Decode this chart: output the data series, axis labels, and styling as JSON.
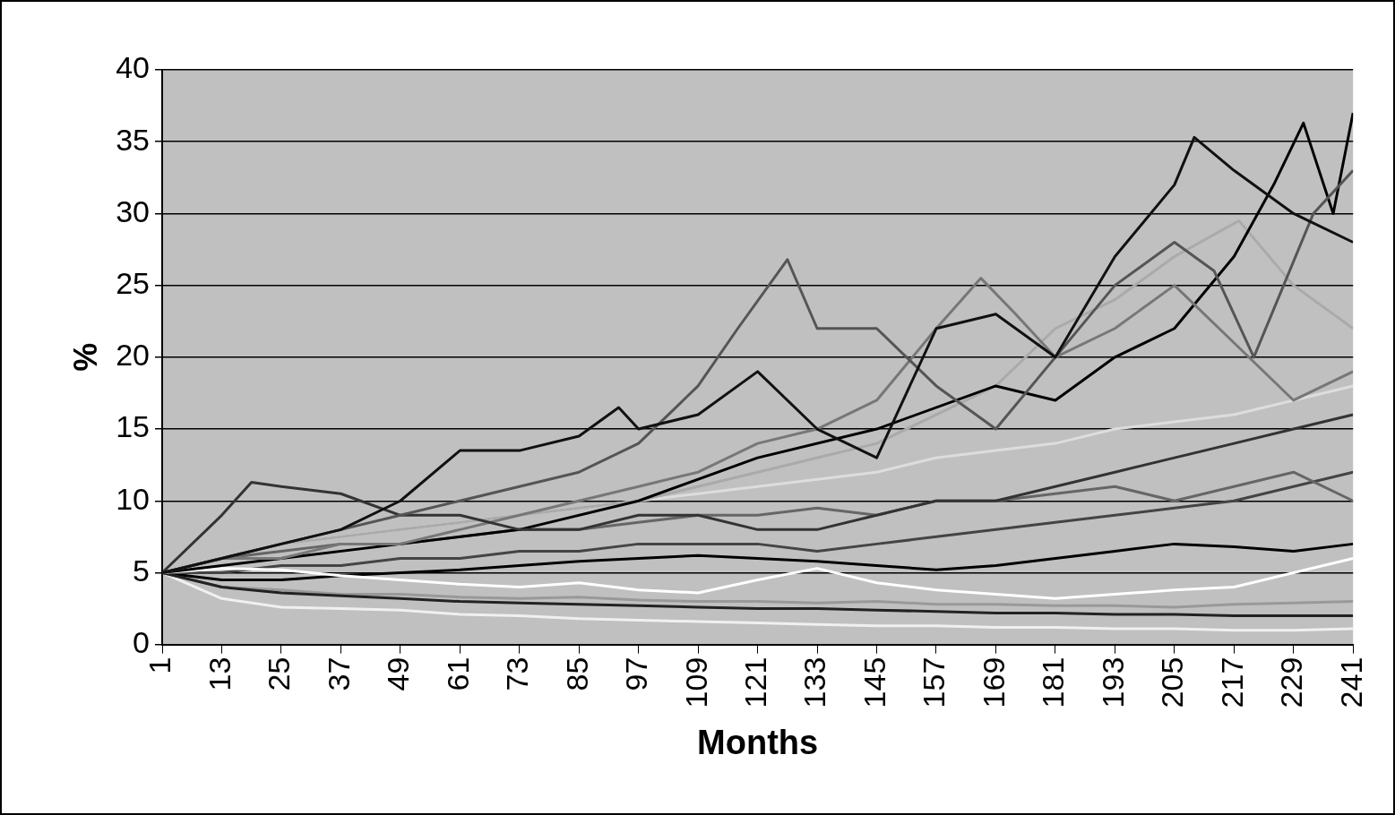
{
  "chart_data": {
    "type": "line",
    "xlabel": "Months",
    "ylabel": "%",
    "xlim": [
      1,
      241
    ],
    "xticks": [
      1,
      13,
      25,
      37,
      49,
      61,
      73,
      85,
      97,
      109,
      121,
      133,
      145,
      157,
      169,
      181,
      193,
      205,
      217,
      229,
      241
    ],
    "ylim": [
      0,
      40
    ],
    "yticks": [
      0,
      5,
      10,
      15,
      20,
      25,
      30,
      35,
      40
    ],
    "grid": "y",
    "legend": false,
    "series": [
      {
        "color": "#111111",
        "x": [
          1,
          13,
          25,
          37,
          49,
          61,
          73,
          85,
          93,
          97,
          109,
          121,
          133,
          145,
          157,
          169,
          181,
          193,
          205,
          209,
          217,
          229,
          241
        ],
        "values": [
          5,
          6,
          7,
          8,
          10,
          13.5,
          13.5,
          14.5,
          16.5,
          15,
          16,
          19,
          15,
          13,
          22,
          23,
          20,
          27,
          32,
          35.3,
          33,
          30,
          28
        ]
      },
      {
        "color": "#555555",
        "x": [
          1,
          13,
          25,
          37,
          49,
          61,
          73,
          85,
          97,
          109,
          117,
          127,
          133,
          145,
          157,
          169,
          181,
          193,
          205,
          213,
          221,
          233,
          241
        ],
        "values": [
          5,
          6,
          7,
          8,
          9,
          10,
          11,
          12,
          14,
          18,
          22,
          26.8,
          22,
          22,
          18,
          15,
          20,
          25,
          28,
          26,
          20,
          30,
          33
        ]
      },
      {
        "color": "#333333",
        "x": [
          1,
          13,
          19,
          25,
          37,
          49,
          61,
          73,
          85,
          97,
          109,
          121,
          133,
          145,
          157,
          169,
          181,
          193,
          205,
          217,
          229,
          241
        ],
        "values": [
          5,
          9,
          11.3,
          11,
          10.5,
          9,
          9,
          8,
          8,
          9,
          9,
          8,
          8,
          9,
          10,
          10,
          11,
          12,
          13,
          14,
          15,
          16
        ]
      },
      {
        "color": "#777777",
        "x": [
          1,
          13,
          25,
          37,
          49,
          61,
          73,
          85,
          97,
          109,
          121,
          133,
          145,
          157,
          166,
          173,
          181,
          193,
          205,
          217,
          229,
          241
        ],
        "values": [
          5,
          6,
          6,
          7,
          7,
          8,
          9,
          10,
          11,
          12,
          14,
          15,
          17,
          22,
          25.5,
          23,
          20,
          22,
          25,
          21,
          17,
          19
        ]
      },
      {
        "color": "#000000",
        "x": [
          1,
          25,
          49,
          73,
          97,
          121,
          145,
          169,
          181,
          193,
          205,
          217,
          225,
          231,
          237,
          241
        ],
        "values": [
          5,
          6,
          7,
          8,
          10,
          13,
          15,
          18,
          17,
          20,
          22,
          27,
          32,
          36.3,
          30,
          37
        ]
      },
      {
        "color": "#aaaaaa",
        "x": [
          1,
          25,
          49,
          73,
          97,
          121,
          145,
          169,
          181,
          193,
          205,
          218,
          229,
          241
        ],
        "values": [
          5,
          7,
          8,
          9,
          10,
          12,
          14,
          18,
          22,
          24,
          27,
          29.5,
          25,
          22
        ]
      },
      {
        "color": "#ffffff",
        "x": [
          1,
          13,
          25,
          37,
          49,
          61,
          73,
          85,
          97,
          109,
          121,
          133,
          145,
          157,
          169,
          181,
          193,
          205,
          217,
          229,
          241
        ],
        "values": [
          5,
          5.3,
          5.2,
          4.8,
          4.5,
          4.2,
          4,
          4.3,
          3.8,
          3.6,
          4.5,
          5.3,
          4.3,
          3.8,
          3.5,
          3.2,
          3.5,
          3.8,
          4,
          5,
          6
        ]
      },
      {
        "color": "#222222",
        "x": [
          1,
          13,
          25,
          37,
          49,
          61,
          73,
          85,
          97,
          109,
          121,
          133,
          145,
          157,
          169,
          181,
          193,
          205,
          217,
          229,
          241
        ],
        "values": [
          5,
          4,
          3.6,
          3.4,
          3.2,
          3,
          2.9,
          2.8,
          2.7,
          2.6,
          2.5,
          2.5,
          2.4,
          2.3,
          2.2,
          2.2,
          2.1,
          2.1,
          2,
          2,
          2
        ]
      },
      {
        "color": "#666666",
        "x": [
          1,
          13,
          25,
          37,
          49,
          61,
          73,
          85,
          97,
          109,
          121,
          133,
          145,
          157,
          169,
          181,
          193,
          205,
          217,
          229,
          241
        ],
        "values": [
          5,
          6,
          6.5,
          7,
          7,
          7.5,
          8,
          8,
          8.5,
          9,
          9,
          9.5,
          9,
          10,
          10,
          10.5,
          11,
          10,
          11,
          12,
          10
        ]
      },
      {
        "color": "#444444",
        "x": [
          1,
          13,
          25,
          37,
          49,
          61,
          73,
          85,
          97,
          109,
          121,
          133,
          145,
          157,
          169,
          181,
          193,
          205,
          217,
          229,
          241
        ],
        "values": [
          5,
          5,
          5.5,
          5.5,
          6,
          6,
          6.5,
          6.5,
          7,
          7,
          7,
          6.5,
          7,
          7.5,
          8,
          8.5,
          9,
          9.5,
          10,
          11,
          12
        ]
      },
      {
        "color": "#000000",
        "x": [
          1,
          13,
          25,
          37,
          49,
          61,
          73,
          85,
          97,
          109,
          121,
          133,
          145,
          157,
          169,
          181,
          193,
          205,
          217,
          229,
          241
        ],
        "values": [
          5,
          4.5,
          4.5,
          4.8,
          5,
          5.2,
          5.5,
          5.8,
          6,
          6.2,
          6,
          5.8,
          5.5,
          5.2,
          5.5,
          6,
          6.5,
          7,
          6.8,
          6.5,
          7
        ]
      },
      {
        "color": "#999999",
        "x": [
          1,
          13,
          25,
          37,
          49,
          61,
          73,
          85,
          97,
          109,
          121,
          133,
          145,
          157,
          169,
          181,
          193,
          205,
          217,
          229,
          241
        ],
        "values": [
          5,
          4,
          3.8,
          3.5,
          3.5,
          3.3,
          3.2,
          3.3,
          3.1,
          3,
          3,
          2.9,
          3,
          2.8,
          2.8,
          2.7,
          2.7,
          2.6,
          2.8,
          2.9,
          3
        ]
      },
      {
        "color": "#dddddd",
        "x": [
          1,
          13,
          25,
          37,
          49,
          61,
          73,
          85,
          97,
          109,
          121,
          133,
          145,
          157,
          169,
          181,
          193,
          205,
          217,
          229,
          241
        ],
        "values": [
          5,
          6,
          7,
          7.5,
          8,
          8.5,
          9,
          9.5,
          10,
          10.5,
          11,
          11.5,
          12,
          13,
          13.5,
          14,
          15,
          15.5,
          16,
          17,
          18
        ]
      },
      {
        "color": "#f0f0f0",
        "x": [
          1,
          13,
          25,
          37,
          49,
          61,
          73,
          85,
          97,
          109,
          121,
          133,
          145,
          157,
          169,
          181,
          193,
          205,
          217,
          229,
          241
        ],
        "values": [
          5,
          3.2,
          2.6,
          2.5,
          2.4,
          2.1,
          2,
          1.8,
          1.7,
          1.6,
          1.5,
          1.4,
          1.3,
          1.3,
          1.2,
          1.2,
          1.1,
          1.1,
          1,
          1,
          1.1
        ]
      }
    ]
  }
}
